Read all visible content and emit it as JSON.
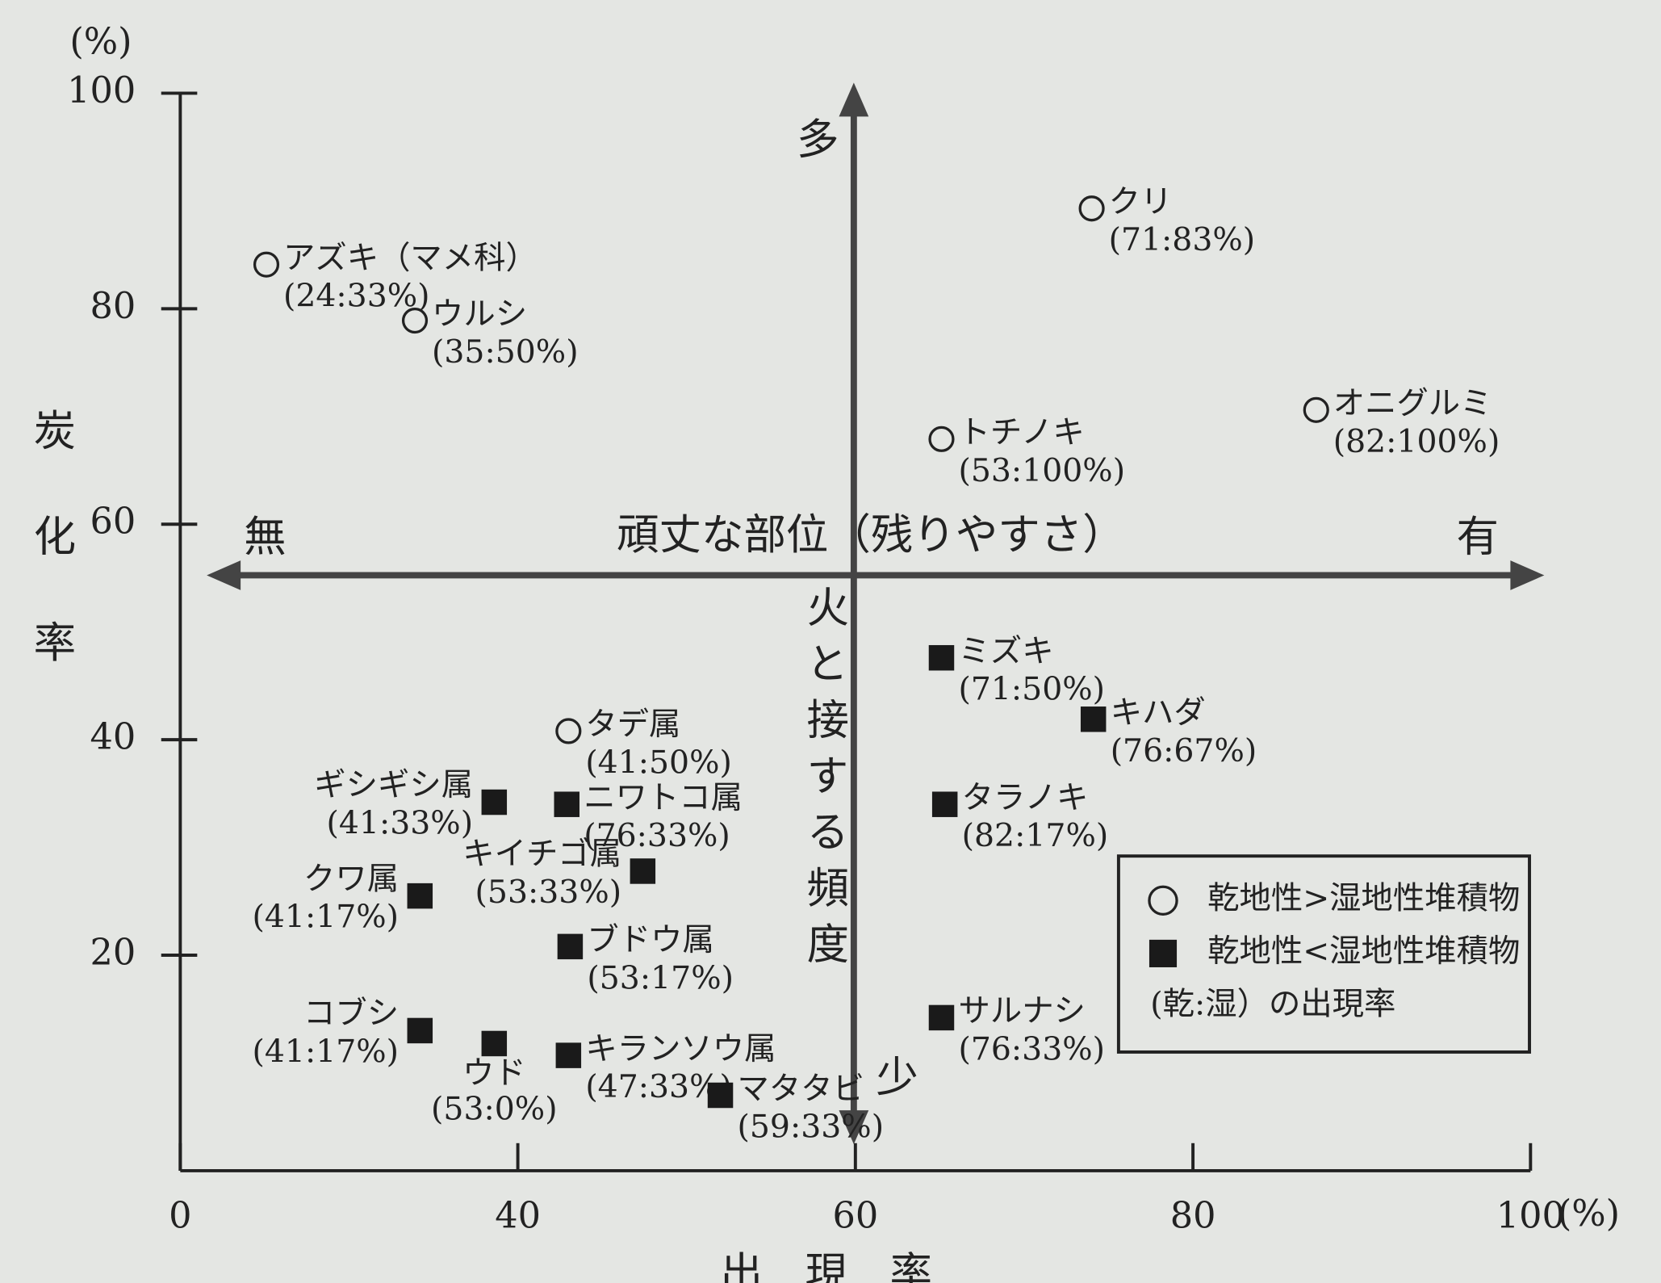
{
  "chart_data": {
    "type": "scatter",
    "x_label": "出現率",
    "x_unit": "(%)",
    "y_label": "炭化率",
    "y_unit": "(%)",
    "xlim": [
      20,
      100
    ],
    "xticks": [
      {
        "value": 20,
        "label": "0"
      },
      40,
      60,
      80,
      100
    ],
    "ylim": [
      0,
      100
    ],
    "yticks": [
      20,
      40,
      60,
      80,
      100
    ],
    "legend": "lower right",
    "legend_note": "(乾:湿）の出現率",
    "annotations": {
      "top": "多",
      "bottom": "少",
      "left": "無",
      "right": "有",
      "horizontal": "頑丈な部位（残りやすさ）",
      "vertical": "火と接する頻度"
    },
    "series": [
      {
        "name": "乾地性>湿地性堆積物",
        "marker": "circle",
        "color": "#222222",
        "labels": [
          "アズキ（マメ科）",
          "ウルシ",
          "クリ",
          "オニグルミ",
          "トチノキ",
          "タデ属"
        ],
        "rates": [
          "(24:33%)",
          "(35:50%)",
          "(71:83%)",
          "(82:100%)",
          "(53:100%)",
          "(41:50%)"
        ],
        "x": [
          25.1,
          33.9,
          74.0,
          87.3,
          65.1,
          43.0
        ],
        "y": [
          84.1,
          78.9,
          89.3,
          70.6,
          67.9,
          40.8
        ]
      },
      {
        "name": "乾地性<湿地性堆積物",
        "marker": "square",
        "color": "#1a1a1a",
        "labels": [
          "ミズキ",
          "キハダ",
          "タラノキ",
          "ギシギシ属",
          "ニワトコ属",
          "キイチゴ属",
          "クワ属",
          "ブドウ属",
          "サルナシ",
          "コブシ",
          "ウド",
          "キランソウ属",
          "マタタビ"
        ],
        "rates": [
          "(71:50%)",
          "(76:67%)",
          "(82:17%)",
          "(41:33%)",
          "(76:33%)",
          "(53:33%)",
          "(41:17%)",
          "(53:17%)",
          "(76:33%)",
          "(41:17%)",
          "(53:0%)",
          "(47:33%)",
          "(59:33%)"
        ],
        "x": [
          65.1,
          74.1,
          65.3,
          38.6,
          42.9,
          47.4,
          34.2,
          43.1,
          65.1,
          34.2,
          38.6,
          43.0,
          52.0
        ],
        "y": [
          47.6,
          41.9,
          34.0,
          34.2,
          34.0,
          27.8,
          25.5,
          20.8,
          14.2,
          13.0,
          11.8,
          10.7,
          7.0
        ]
      }
    ]
  }
}
